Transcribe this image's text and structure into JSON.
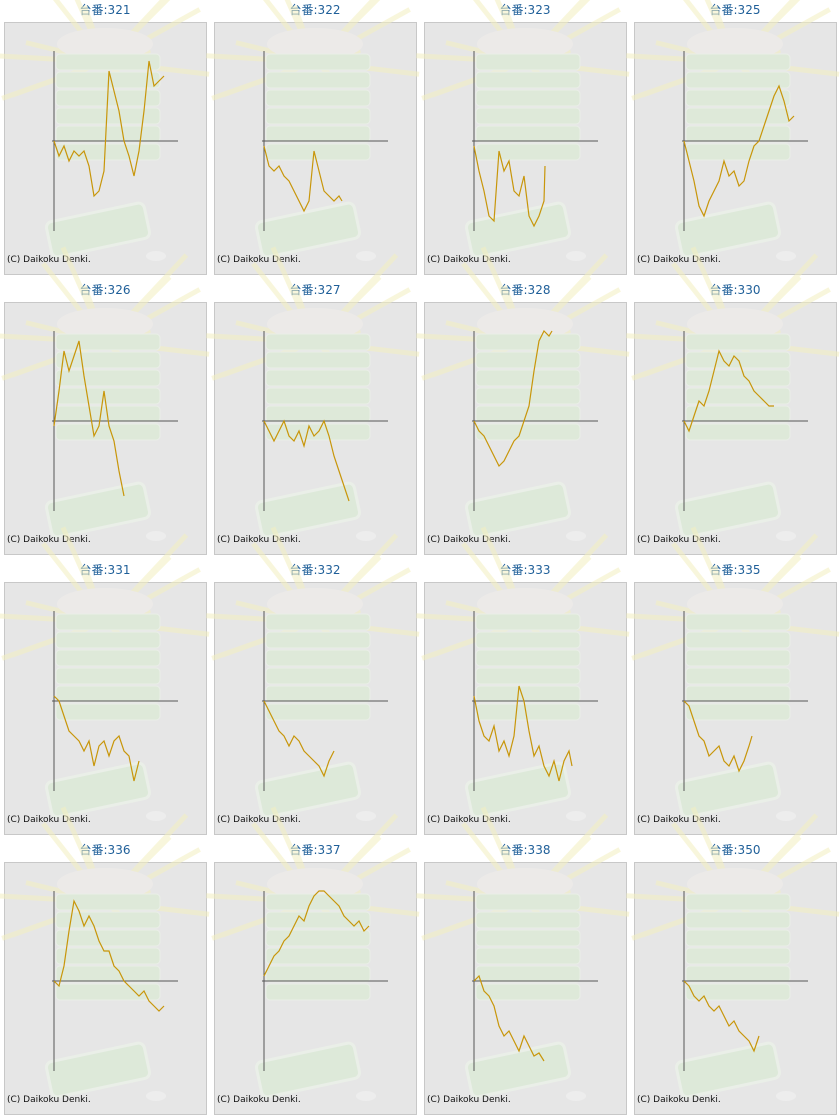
{
  "chart_data": [
    {
      "type": "line",
      "title": "台番:321",
      "annotation": "(C) Daikoku Denki.",
      "color": "#c8960a",
      "xlim": [
        0,
        124
      ],
      "ylim": [
        -90,
        90
      ],
      "x": [
        0,
        5,
        10,
        15,
        20,
        25,
        30,
        35,
        40,
        45,
        50,
        55,
        60,
        65,
        70,
        75,
        80,
        85,
        90,
        95,
        100,
        105,
        110
      ],
      "values": [
        0,
        -15,
        -5,
        -20,
        -10,
        -15,
        -10,
        -25,
        -55,
        -50,
        -30,
        70,
        50,
        30,
        0,
        -15,
        -35,
        -10,
        30,
        80,
        55,
        60,
        65
      ]
    },
    {
      "type": "line",
      "title": "台番:322",
      "annotation": "(C) Daikoku Denki.",
      "color": "#c8960a",
      "xlim": [
        0,
        124
      ],
      "ylim": [
        -90,
        90
      ],
      "x": [
        0,
        5,
        10,
        15,
        20,
        25,
        30,
        35,
        40,
        45,
        50,
        55,
        60,
        65,
        70,
        75,
        78
      ],
      "values": [
        -5,
        -25,
        -30,
        -25,
        -35,
        -40,
        -50,
        -60,
        -70,
        -60,
        -10,
        -30,
        -50,
        -55,
        -60,
        -55,
        -60
      ]
    },
    {
      "type": "line",
      "title": "台番:323",
      "annotation": "(C) Daikoku Denki.",
      "color": "#c8960a",
      "xlim": [
        0,
        124
      ],
      "ylim": [
        -90,
        90
      ],
      "x": [
        0,
        5,
        10,
        15,
        20,
        25,
        30,
        35,
        40,
        45,
        50,
        55,
        60,
        65,
        70,
        71
      ],
      "values": [
        -5,
        -30,
        -50,
        -75,
        -80,
        -10,
        -30,
        -20,
        -50,
        -55,
        -35,
        -75,
        -85,
        -75,
        -60,
        -25
      ]
    },
    {
      "type": "line",
      "title": "台番:325",
      "annotation": "(C) Daikoku Denki.",
      "color": "#c8960a",
      "xlim": [
        0,
        124
      ],
      "ylim": [
        -90,
        90
      ],
      "x": [
        0,
        5,
        10,
        15,
        20,
        25,
        30,
        35,
        40,
        45,
        50,
        55,
        60,
        65,
        70,
        75,
        80,
        85,
        90,
        95,
        100,
        105,
        110
      ],
      "values": [
        0,
        -20,
        -40,
        -65,
        -75,
        -60,
        -50,
        -40,
        -20,
        -35,
        -30,
        -45,
        -40,
        -20,
        -5,
        0,
        15,
        30,
        45,
        55,
        40,
        20,
        25
      ]
    },
    {
      "type": "line",
      "title": "台番:326",
      "annotation": "(C) Daikoku Denki.",
      "color": "#c8960a",
      "xlim": [
        0,
        124
      ],
      "ylim": [
        -90,
        90
      ],
      "x": [
        0,
        5,
        10,
        15,
        20,
        25,
        30,
        35,
        40,
        45,
        50,
        55,
        60,
        65,
        70
      ],
      "values": [
        -5,
        30,
        70,
        50,
        65,
        80,
        45,
        15,
        -15,
        -5,
        30,
        -5,
        -20,
        -50,
        -75
      ]
    },
    {
      "type": "line",
      "title": "台番:327",
      "annotation": "(C) Daikoku Denki.",
      "color": "#c8960a",
      "xlim": [
        0,
        124
      ],
      "ylim": [
        -90,
        90
      ],
      "x": [
        0,
        5,
        10,
        15,
        20,
        25,
        30,
        35,
        40,
        45,
        50,
        55,
        60,
        65,
        70,
        75,
        80,
        85
      ],
      "values": [
        0,
        -10,
        -20,
        -10,
        0,
        -15,
        -20,
        -10,
        -25,
        -5,
        -15,
        -10,
        0,
        -15,
        -35,
        -50,
        -65,
        -80
      ]
    },
    {
      "type": "line",
      "title": "台番:328",
      "annotation": "(C) Daikoku Denki.",
      "color": "#c8960a",
      "xlim": [
        0,
        124
      ],
      "ylim": [
        -90,
        90
      ],
      "x": [
        0,
        5,
        10,
        15,
        20,
        25,
        30,
        35,
        40,
        45,
        50,
        55,
        60,
        65,
        70,
        75,
        78
      ],
      "values": [
        0,
        -10,
        -15,
        -25,
        -35,
        -45,
        -40,
        -30,
        -20,
        -15,
        0,
        15,
        50,
        80,
        90,
        85,
        90
      ]
    },
    {
      "type": "line",
      "title": "台番:330",
      "annotation": "(C) Daikoku Denki.",
      "color": "#c8960a",
      "xlim": [
        0,
        124
      ],
      "ylim": [
        -90,
        90
      ],
      "x": [
        0,
        5,
        10,
        15,
        20,
        25,
        30,
        35,
        40,
        45,
        50,
        55,
        60,
        65,
        70,
        75,
        80,
        85,
        90
      ],
      "values": [
        0,
        -10,
        5,
        20,
        15,
        30,
        50,
        70,
        60,
        55,
        65,
        60,
        45,
        40,
        30,
        25,
        20,
        15,
        15
      ]
    },
    {
      "type": "line",
      "title": "台番:331",
      "annotation": "(C) Daikoku Denki.",
      "color": "#c8960a",
      "xlim": [
        0,
        124
      ],
      "ylim": [
        -90,
        90
      ],
      "x": [
        0,
        5,
        10,
        15,
        20,
        25,
        30,
        35,
        40,
        45,
        50,
        55,
        60,
        65,
        70,
        75,
        80,
        85
      ],
      "values": [
        5,
        0,
        -15,
        -30,
        -35,
        -40,
        -50,
        -40,
        -65,
        -45,
        -40,
        -55,
        -40,
        -35,
        -50,
        -55,
        -80,
        -60
      ]
    },
    {
      "type": "line",
      "title": "台番:332",
      "annotation": "(C) Daikoku Denki.",
      "color": "#c8960a",
      "xlim": [
        0,
        124
      ],
      "ylim": [
        -90,
        90
      ],
      "x": [
        0,
        5,
        10,
        15,
        20,
        25,
        30,
        35,
        40,
        45,
        50,
        55,
        60,
        65,
        70
      ],
      "values": [
        0,
        -10,
        -20,
        -30,
        -35,
        -45,
        -35,
        -40,
        -50,
        -55,
        -60,
        -65,
        -75,
        -60,
        -50
      ]
    },
    {
      "type": "line",
      "title": "台番:333",
      "annotation": "(C) Daikoku Denki.",
      "color": "#c8960a",
      "xlim": [
        0,
        124
      ],
      "ylim": [
        -90,
        90
      ],
      "x": [
        0,
        5,
        10,
        15,
        20,
        25,
        30,
        35,
        40,
        45,
        50,
        55,
        60,
        65,
        70,
        75,
        80,
        85,
        90,
        95,
        98
      ],
      "values": [
        5,
        -20,
        -35,
        -40,
        -25,
        -50,
        -40,
        -55,
        -35,
        15,
        0,
        -30,
        -55,
        -45,
        -65,
        -75,
        -60,
        -80,
        -60,
        -50,
        -65
      ]
    },
    {
      "type": "line",
      "title": "台番:335",
      "annotation": "(C) Daikoku Denki.",
      "color": "#c8960a",
      "xlim": [
        0,
        124
      ],
      "ylim": [
        -90,
        90
      ],
      "x": [
        0,
        5,
        10,
        15,
        20,
        25,
        30,
        35,
        40,
        45,
        50,
        55,
        60,
        65,
        68
      ],
      "values": [
        0,
        -5,
        -20,
        -35,
        -40,
        -55,
        -50,
        -45,
        -60,
        -65,
        -55,
        -70,
        -60,
        -45,
        -35
      ]
    },
    {
      "type": "line",
      "title": "台番:336",
      "annotation": "(C) Daikoku Denki.",
      "color": "#c8960a",
      "xlim": [
        0,
        124
      ],
      "ylim": [
        -90,
        90
      ],
      "x": [
        0,
        5,
        10,
        15,
        20,
        25,
        30,
        35,
        40,
        45,
        50,
        55,
        60,
        65,
        70,
        75,
        80,
        85,
        90,
        95,
        100,
        105,
        110
      ],
      "values": [
        0,
        -5,
        15,
        50,
        80,
        70,
        55,
        65,
        55,
        40,
        30,
        30,
        15,
        10,
        0,
        -5,
        -10,
        -15,
        -10,
        -20,
        -25,
        -30,
        -25
      ]
    },
    {
      "type": "line",
      "title": "台番:337",
      "annotation": "(C) Daikoku Denki.",
      "color": "#c8960a",
      "xlim": [
        0,
        124
      ],
      "ylim": [
        -90,
        90
      ],
      "x": [
        0,
        5,
        10,
        15,
        20,
        25,
        30,
        35,
        40,
        45,
        50,
        55,
        60,
        65,
        70,
        75,
        80,
        85,
        90,
        95,
        100,
        105
      ],
      "values": [
        5,
        15,
        25,
        30,
        40,
        45,
        55,
        65,
        60,
        75,
        85,
        90,
        90,
        85,
        80,
        75,
        65,
        60,
        55,
        60,
        50,
        55
      ]
    },
    {
      "type": "line",
      "title": "台番:338",
      "annotation": "(C) Daikoku Denki.",
      "color": "#c8960a",
      "xlim": [
        0,
        124
      ],
      "ylim": [
        -90,
        90
      ],
      "x": [
        0,
        5,
        10,
        15,
        20,
        25,
        30,
        35,
        40,
        45,
        50,
        55,
        60,
        65,
        70
      ],
      "values": [
        0,
        5,
        -10,
        -15,
        -25,
        -45,
        -55,
        -50,
        -60,
        -70,
        -55,
        -65,
        -75,
        -72,
        -80
      ]
    },
    {
      "type": "line",
      "title": "台番:350",
      "annotation": "(C) Daikoku Denki.",
      "color": "#c8960a",
      "xlim": [
        0,
        124
      ],
      "ylim": [
        -90,
        90
      ],
      "x": [
        0,
        5,
        10,
        15,
        20,
        25,
        30,
        35,
        40,
        45,
        50,
        55,
        60,
        65,
        70,
        75
      ],
      "values": [
        0,
        -5,
        -15,
        -20,
        -15,
        -25,
        -30,
        -25,
        -35,
        -45,
        -40,
        -50,
        -55,
        -60,
        -70,
        -55
      ]
    }
  ]
}
